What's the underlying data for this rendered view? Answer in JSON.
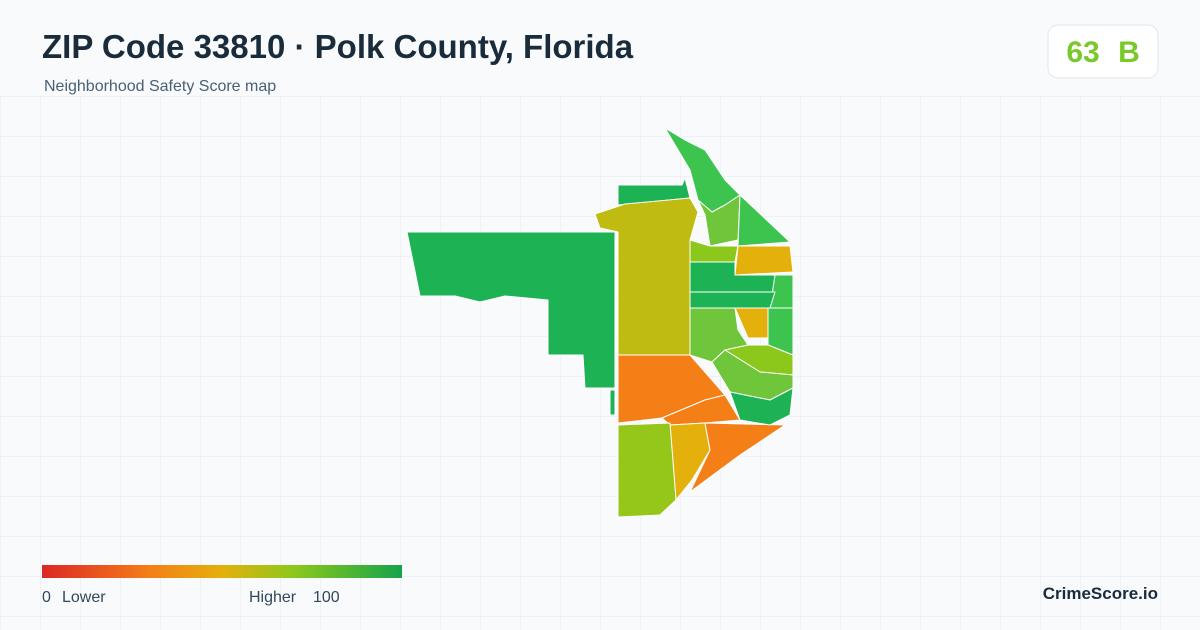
{
  "header": {
    "title": "ZIP Code 33810 · Polk County, Florida",
    "subtitle": "Neighborhood Safety Score map"
  },
  "score": {
    "value": "63",
    "grade": "B"
  },
  "legend": {
    "min": "0",
    "min_label": "Lower",
    "max_label": "Higher",
    "max": "100"
  },
  "brand": "CrimeScore.io"
}
